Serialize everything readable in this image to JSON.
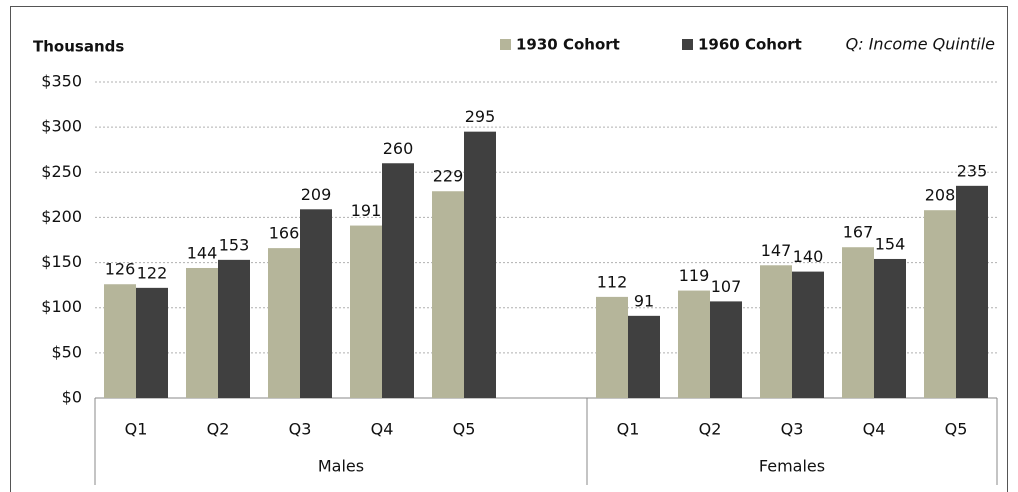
{
  "chart_data": {
    "type": "bar",
    "ylabel": "Thousands",
    "annotation": "Q: Income Quintile",
    "categories": [
      "Q1",
      "Q2",
      "Q3",
      "Q4",
      "Q5",
      null,
      "Q1",
      "Q2",
      "Q3",
      "Q4",
      "Q5"
    ],
    "groups": [
      "Males",
      "Females"
    ],
    "series": [
      {
        "name": "1930 Cohort",
        "color": "#b5b59a",
        "values": [
          126,
          144,
          166,
          191,
          229,
          null,
          112,
          119,
          147,
          167,
          208
        ]
      },
      {
        "name": "1960 Cohort",
        "color": "#404040",
        "values": [
          122,
          153,
          209,
          260,
          295,
          null,
          91,
          107,
          140,
          154,
          235
        ]
      }
    ],
    "ylim": [
      0,
      350
    ],
    "yticks": [
      {
        "value": 0,
        "label": "$0"
      },
      {
        "value": 50,
        "label": "$50"
      },
      {
        "value": 100,
        "label": "$100"
      },
      {
        "value": 150,
        "label": "$150"
      },
      {
        "value": 200,
        "label": "$200"
      },
      {
        "value": 250,
        "label": "$250"
      },
      {
        "value": 300,
        "label": "$300"
      },
      {
        "value": 350,
        "label": "$350"
      }
    ],
    "grid": true
  }
}
